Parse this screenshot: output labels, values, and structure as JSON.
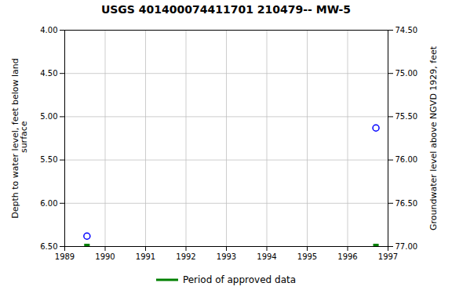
{
  "chart_data": {
    "type": "scatter",
    "title": "USGS 401400074411701 210479-- MW-5",
    "y_label": "Depth to water level, feet below land\n surface",
    "y2_label": "Groundwater level above NGVD 1929, feet",
    "xlim": [
      1989.0,
      1997.0
    ],
    "xticks": [
      1989,
      1990,
      1991,
      1992,
      1993,
      1994,
      1995,
      1996,
      1997
    ],
    "ylim": [
      6.5,
      4.0
    ],
    "yticks": [
      {
        "value": 4.0,
        "label": "4.00"
      },
      {
        "value": 4.5,
        "label": "4.50"
      },
      {
        "value": 5.0,
        "label": "5.00"
      },
      {
        "value": 5.5,
        "label": "5.50"
      },
      {
        "value": 6.0,
        "label": "6.00"
      },
      {
        "value": 6.5,
        "label": "6.50"
      }
    ],
    "y2lim": [
      77.0,
      74.5
    ],
    "y2ticks": [
      {
        "value": 74.5,
        "label": "74.50"
      },
      {
        "value": 75.0,
        "label": "75.00"
      },
      {
        "value": 75.5,
        "label": "75.50"
      },
      {
        "value": 76.0,
        "label": "76.00"
      },
      {
        "value": 76.5,
        "label": "76.50"
      },
      {
        "value": 77.0,
        "label": "77.00"
      }
    ],
    "grid": true,
    "legend": "bottom",
    "series": [
      {
        "color": "#0000ff",
        "marker": "circle",
        "x": [
          1989.55,
          1996.7
        ],
        "values": [
          6.38,
          5.13
        ]
      },
      {
        "name": "Period of approved data",
        "color": "#008000",
        "marker": "square",
        "x": [
          1989.55,
          1996.7
        ],
        "values": [
          6.5,
          6.5
        ]
      }
    ]
  }
}
